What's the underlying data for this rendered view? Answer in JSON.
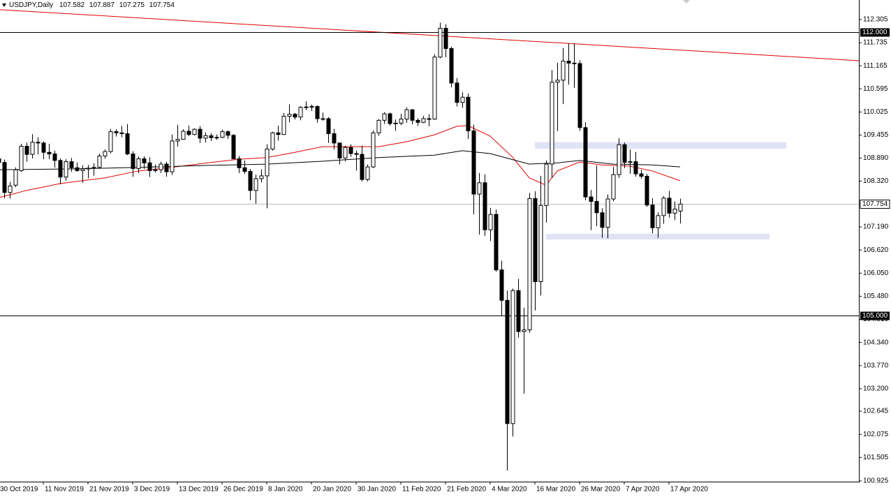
{
  "chart_data": {
    "type": "candlestick",
    "title": "USDJPY,Daily",
    "categories": [
      "30 Oct 2019",
      null,
      null,
      null,
      null,
      null,
      null,
      null,
      "11 Nov 2019",
      null,
      null,
      null,
      null,
      null,
      null,
      null,
      "21 Nov 2019",
      null,
      null,
      null,
      null,
      null,
      null,
      null,
      "3 Dec 2019",
      null,
      null,
      null,
      null,
      null,
      null,
      null,
      "13 Dec 2019",
      null,
      null,
      null,
      null,
      null,
      null,
      null,
      "26 Dec 2019",
      null,
      null,
      null,
      null,
      null,
      null,
      null,
      "8 Jan 2020",
      null,
      null,
      null,
      null,
      null,
      null,
      null,
      "20 Jan 2020",
      null,
      null,
      null,
      null,
      null,
      null,
      null,
      "30 Jan 2020",
      null,
      null,
      null,
      null,
      null,
      null,
      null,
      "11 Feb 2020",
      null,
      null,
      null,
      null,
      null,
      null,
      null,
      "21 Feb 2020",
      null,
      null,
      null,
      null,
      null,
      null,
      null,
      "4 Mar 2020",
      null,
      null,
      null,
      null,
      null,
      null,
      null,
      "16 Mar 2020",
      null,
      null,
      null,
      null,
      null,
      null,
      null,
      "26 Mar 2020",
      null,
      null,
      null,
      null,
      null,
      null,
      null,
      "7 Apr 2020",
      null,
      null,
      null,
      null,
      null,
      null,
      null,
      "17 Apr 2020",
      null,
      null
    ],
    "ohlc": [
      [
        108.87,
        109.03,
        108.63,
        108.78
      ],
      [
        108.78,
        108.85,
        107.9,
        108.04
      ],
      [
        108.04,
        108.3,
        107.89,
        108.2
      ],
      [
        108.22,
        108.66,
        108.17,
        108.6
      ],
      [
        108.58,
        109.24,
        108.55,
        109.18
      ],
      [
        109.18,
        109.27,
        108.8,
        108.98
      ],
      [
        108.98,
        109.48,
        108.88,
        109.28
      ],
      [
        109.28,
        109.4,
        108.98,
        109.26
      ],
      [
        109.26,
        109.3,
        108.86,
        109.03
      ],
      [
        109.03,
        109.24,
        108.86,
        108.99
      ],
      [
        108.99,
        109.07,
        108.65,
        108.83
      ],
      [
        108.83,
        108.88,
        108.24,
        108.42
      ],
      [
        108.42,
        108.86,
        108.33,
        108.8
      ],
      [
        108.8,
        108.89,
        108.55,
        108.65
      ],
      [
        108.65,
        108.78,
        108.55,
        108.58
      ],
      [
        108.58,
        108.71,
        108.28,
        108.62
      ],
      [
        108.62,
        108.72,
        108.39,
        108.64
      ],
      [
        108.64,
        108.76,
        108.45,
        108.66
      ],
      [
        108.66,
        109.0,
        108.62,
        108.94
      ],
      [
        108.94,
        109.1,
        108.87,
        109.05
      ],
      [
        109.05,
        109.61,
        109.0,
        109.54
      ],
      [
        109.54,
        109.6,
        109.42,
        109.51
      ],
      [
        109.51,
        109.68,
        109.4,
        109.49
      ],
      [
        109.49,
        109.73,
        108.96,
        108.99
      ],
      [
        108.99,
        109.06,
        108.43,
        108.63
      ],
      [
        108.63,
        108.93,
        108.52,
        108.87
      ],
      [
        108.87,
        108.93,
        108.62,
        108.77
      ],
      [
        108.77,
        108.91,
        108.42,
        108.58
      ],
      [
        108.58,
        108.73,
        108.53,
        108.6
      ],
      [
        108.6,
        108.8,
        108.52,
        108.74
      ],
      [
        108.74,
        108.8,
        108.43,
        108.55
      ],
      [
        108.55,
        109.47,
        108.47,
        109.31
      ],
      [
        109.31,
        109.71,
        109.17,
        109.35
      ],
      [
        109.35,
        109.6,
        109.34,
        109.55
      ],
      [
        109.55,
        109.69,
        109.43,
        109.47
      ],
      [
        109.47,
        109.62,
        109.45,
        109.6
      ],
      [
        109.6,
        109.68,
        109.26,
        109.38
      ],
      [
        109.38,
        109.52,
        109.27,
        109.44
      ],
      [
        109.44,
        109.5,
        109.31,
        109.39
      ],
      [
        109.39,
        109.47,
        109.34,
        109.4
      ],
      [
        109.4,
        109.59,
        109.38,
        109.54
      ],
      [
        109.54,
        109.57,
        109.36,
        109.45
      ],
      [
        109.45,
        109.48,
        108.86,
        108.87
      ],
      [
        108.87,
        108.94,
        108.52,
        108.65
      ],
      [
        108.65,
        108.83,
        108.5,
        108.56
      ],
      [
        108.56,
        108.62,
        107.85,
        108.09
      ],
      [
        108.09,
        108.48,
        107.76,
        108.38
      ],
      [
        108.38,
        108.61,
        108.29,
        108.45
      ],
      [
        108.45,
        109.23,
        107.65,
        109.11
      ],
      [
        109.11,
        109.54,
        109.07,
        109.51
      ],
      [
        109.51,
        109.69,
        109.32,
        109.47
      ],
      [
        109.47,
        110.0,
        109.46,
        109.92
      ],
      [
        109.92,
        110.21,
        109.77,
        109.97
      ],
      [
        109.97,
        110.0,
        109.84,
        109.9
      ],
      [
        109.9,
        110.17,
        109.82,
        110.14
      ],
      [
        110.14,
        110.29,
        110.07,
        110.15
      ],
      [
        110.15,
        110.21,
        110.05,
        110.16
      ],
      [
        110.16,
        110.19,
        109.76,
        109.86
      ],
      [
        109.86,
        110.01,
        109.81,
        109.86
      ],
      [
        109.86,
        109.9,
        109.26,
        109.49
      ],
      [
        109.49,
        109.61,
        109.1,
        109.26
      ],
      [
        109.26,
        109.27,
        108.73,
        108.89
      ],
      [
        108.89,
        109.19,
        108.81,
        109.15
      ],
      [
        109.15,
        109.23,
        108.92,
        109.0
      ],
      [
        109.0,
        109.07,
        108.58,
        108.98
      ],
      [
        108.98,
        109.2,
        108.31,
        108.36
      ],
      [
        108.36,
        108.73,
        108.31,
        108.67
      ],
      [
        108.67,
        109.57,
        108.64,
        109.51
      ],
      [
        109.51,
        109.85,
        109.44,
        109.82
      ],
      [
        109.82,
        110.02,
        109.73,
        109.98
      ],
      [
        109.98,
        110.01,
        109.69,
        109.74
      ],
      [
        109.74,
        109.84,
        109.56,
        109.75
      ],
      [
        109.75,
        109.98,
        109.7,
        109.85
      ],
      [
        109.85,
        110.14,
        109.76,
        110.08
      ],
      [
        110.08,
        110.1,
        109.72,
        109.82
      ],
      [
        109.82,
        109.87,
        109.68,
        109.77
      ],
      [
        109.77,
        109.93,
        109.75,
        109.86
      ],
      [
        109.86,
        109.97,
        109.67,
        109.85
      ],
      [
        109.85,
        111.45,
        109.83,
        111.38
      ],
      [
        111.38,
        112.23,
        111.35,
        112.09
      ],
      [
        112.09,
        112.19,
        111.37,
        111.59
      ],
      [
        111.59,
        111.64,
        110.63,
        110.74
      ],
      [
        110.74,
        110.86,
        110.16,
        110.26
      ],
      [
        110.26,
        110.51,
        110.13,
        110.39
      ],
      [
        110.39,
        110.48,
        109.36,
        109.56
      ],
      [
        109.56,
        109.71,
        107.5,
        108.0
      ],
      [
        108.0,
        108.52,
        107.0,
        108.28
      ],
      [
        108.28,
        108.49,
        106.97,
        107.12
      ],
      [
        107.12,
        107.66,
        106.84,
        107.5
      ],
      [
        107.5,
        107.62,
        106.09,
        106.13
      ],
      [
        106.13,
        106.36,
        104.99,
        105.38
      ],
      [
        105.38,
        105.62,
        101.18,
        102.34
      ],
      [
        102.34,
        105.67,
        102.02,
        105.62
      ],
      [
        105.62,
        105.91,
        104.46,
        104.61
      ],
      [
        104.61,
        105.2,
        103.08,
        104.65
      ],
      [
        104.65,
        108.03,
        104.58,
        107.89
      ],
      [
        107.89,
        108.07,
        105.13,
        105.84
      ],
      [
        105.84,
        108.45,
        105.5,
        107.72
      ],
      [
        107.72,
        108.83,
        107.3,
        108.74
      ],
      [
        108.74,
        111.06,
        108.4,
        110.76
      ],
      [
        110.76,
        111.24,
        109.55,
        110.81
      ],
      [
        110.81,
        111.6,
        110.22,
        111.28
      ],
      [
        111.28,
        111.71,
        110.7,
        111.23
      ],
      [
        111.23,
        111.72,
        110.62,
        111.22
      ],
      [
        111.22,
        111.3,
        109.56,
        109.64
      ],
      [
        109.64,
        109.77,
        107.85,
        107.93
      ],
      [
        107.93,
        108.1,
        107.11,
        107.82
      ],
      [
        107.82,
        108.71,
        107.21,
        107.54
      ],
      [
        107.54,
        107.65,
        106.92,
        107.18
      ],
      [
        107.18,
        107.99,
        106.91,
        107.88
      ],
      [
        107.88,
        108.67,
        107.82,
        108.48
      ],
      [
        108.48,
        109.38,
        108.4,
        109.22
      ],
      [
        109.22,
        109.27,
        108.64,
        108.78
      ],
      [
        108.78,
        109.1,
        108.5,
        108.8
      ],
      [
        108.8,
        109.04,
        108.43,
        108.5
      ],
      [
        108.5,
        108.6,
        108.38,
        108.44
      ],
      [
        108.44,
        108.5,
        107.69,
        107.73
      ],
      [
        107.73,
        107.9,
        107.03,
        107.17
      ],
      [
        107.17,
        107.55,
        106.92,
        107.47
      ],
      [
        107.47,
        107.95,
        107.27,
        107.9
      ],
      [
        107.9,
        108.08,
        107.42,
        107.53
      ],
      [
        107.53,
        107.82,
        107.36,
        107.63
      ],
      [
        107.582,
        107.887,
        107.275,
        107.754
      ]
    ],
    "colors": {
      "bull": "#ffffff",
      "bear": "#000000",
      "outline": "#000000"
    },
    "ylim": [
      100.908,
      112.787
    ],
    "yticks": [
      112.305,
      111.735,
      111.165,
      110.595,
      110.025,
      109.455,
      {
        "value": 108.89,
        "label": "108.890"
      },
      {
        "value": 108.32,
        "label": "108.320"
      },
      {
        "value": 107.19,
        "label": "107.190"
      },
      {
        "value": 106.62,
        "label": "106.620"
      },
      {
        "value": 106.05,
        "label": "106.050"
      },
      {
        "value": 105.48,
        "label": "105.480"
      },
      {
        "value": 104.91,
        "label": "104.910"
      },
      {
        "value": 104.34,
        "label": "104.340"
      },
      {
        "value": 103.77,
        "label": "103.770"
      },
      {
        "value": 103.2,
        "label": "103.200"
      },
      102.645,
      102.075,
      101.505,
      100.925
    ],
    "hlines": [
      {
        "value": 112,
        "label": "112.000",
        "color": "#000000"
      },
      {
        "value": 105,
        "label": "105.000",
        "color": "#000000"
      }
    ],
    "price_line_color": "#c0c0c0",
    "trendline": {
      "color": "#e00000",
      "x": [
        0,
        154
      ],
      "values": [
        112.55,
        111.29
      ]
    },
    "zones": [
      {
        "color": "#dfe3f5",
        "x": [
          96,
          141
        ],
        "values": [
          109.28,
          109.12
        ]
      },
      {
        "color": "#dfe3f5",
        "x": [
          98,
          138
        ],
        "values": [
          107.02,
          106.88
        ]
      }
    ],
    "ma_lines": [
      {
        "color": "#e00000",
        "x": [
          0,
          5,
          11,
          19,
          25,
          31,
          38,
          43,
          48,
          53,
          58,
          63,
          68,
          73,
          78,
          82,
          84,
          88,
          92,
          95,
          98,
          100,
          104,
          108,
          113,
          117,
          122
        ],
        "values": [
          107.91,
          108.09,
          108.26,
          108.4,
          108.57,
          108.66,
          108.78,
          108.86,
          108.9,
          109.03,
          109.17,
          109.17,
          109.17,
          109.29,
          109.46,
          109.67,
          109.69,
          109.43,
          108.91,
          108.4,
          108.22,
          108.57,
          108.79,
          108.72,
          108.69,
          108.57,
          108.33
        ]
      },
      {
        "color": "#000000",
        "x": [
          0,
          13,
          25,
          38,
          48,
          58,
          68,
          78,
          83,
          88,
          95,
          100,
          104,
          110,
          117,
          122
        ],
        "values": [
          108.6,
          108.62,
          108.66,
          108.71,
          108.74,
          108.81,
          108.9,
          108.96,
          109.07,
          109.0,
          108.74,
          108.77,
          108.83,
          108.74,
          108.72,
          108.67
        ]
      }
    ]
  }
}
